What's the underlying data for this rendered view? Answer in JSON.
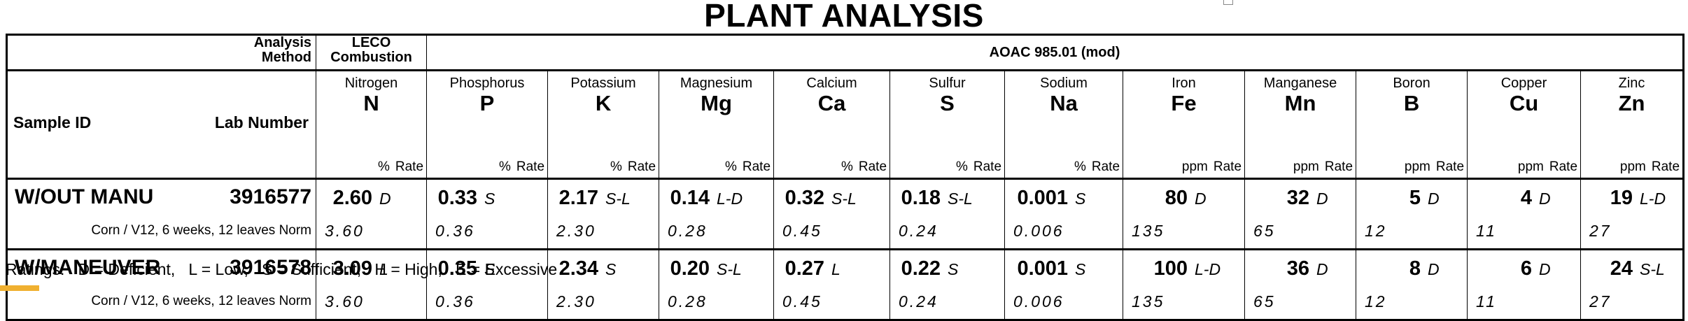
{
  "title": "PLANT ANALYSIS",
  "header": {
    "analysis_method_line1": "Analysis",
    "analysis_method_line2": "Method",
    "leco_line1": "LECO",
    "leco_line2": "Combustion",
    "aoac": "AOAC 985.01 (mod)",
    "sample_id": "Sample ID",
    "lab_number": "Lab Number"
  },
  "elements": [
    {
      "name": "Nitrogen",
      "symbol": "N",
      "unit": "%",
      "rate": "Rate"
    },
    {
      "name": "Phosphorus",
      "symbol": "P",
      "unit": "%",
      "rate": "Rate"
    },
    {
      "name": "Potassium",
      "symbol": "K",
      "unit": "%",
      "rate": "Rate"
    },
    {
      "name": "Magnesium",
      "symbol": "Mg",
      "unit": "%",
      "rate": "Rate"
    },
    {
      "name": "Calcium",
      "symbol": "Ca",
      "unit": "%",
      "rate": "Rate"
    },
    {
      "name": "Sulfur",
      "symbol": "S",
      "unit": "%",
      "rate": "Rate"
    },
    {
      "name": "Sodium",
      "symbol": "Na",
      "unit": "%",
      "rate": "Rate"
    },
    {
      "name": "Iron",
      "symbol": "Fe",
      "unit": "ppm",
      "rate": "Rate"
    },
    {
      "name": "Manganese",
      "symbol": "Mn",
      "unit": "ppm",
      "rate": "Rate"
    },
    {
      "name": "Boron",
      "symbol": "B",
      "unit": "ppm",
      "rate": "Rate"
    },
    {
      "name": "Copper",
      "symbol": "Cu",
      "unit": "ppm",
      "rate": "Rate"
    },
    {
      "name": "Zinc",
      "symbol": "Zn",
      "unit": "ppm",
      "rate": "Rate"
    }
  ],
  "samples": [
    {
      "sample_id": "W/OUT MANU",
      "lab_number": "3916577",
      "description": "Corn / V12, 6 weeks, 12 leaves Norm",
      "values": [
        {
          "value": "2.60",
          "rate": "D"
        },
        {
          "value": "0.33",
          "rate": "S"
        },
        {
          "value": "2.17",
          "rate": "S-L"
        },
        {
          "value": "0.14",
          "rate": "L-D"
        },
        {
          "value": "0.32",
          "rate": "S-L"
        },
        {
          "value": "0.18",
          "rate": "S-L"
        },
        {
          "value": "0.001",
          "rate": "S"
        },
        {
          "value": "80",
          "rate": "D"
        },
        {
          "value": "32",
          "rate": "D"
        },
        {
          "value": "5",
          "rate": "D"
        },
        {
          "value": "4",
          "rate": "D"
        },
        {
          "value": "19",
          "rate": "L-D"
        }
      ],
      "norms": [
        "3.60",
        "0.36",
        "2.30",
        "0.28",
        "0.45",
        "0.24",
        "0.006",
        "135",
        "65",
        "12",
        "11",
        "27"
      ]
    },
    {
      "sample_id": "W/MANEUVER",
      "lab_number": "3916578",
      "description": "Corn / V12, 6 weeks, 12 leaves Norm",
      "values": [
        {
          "value": "3.09",
          "rate": "L"
        },
        {
          "value": "0.35",
          "rate": "S"
        },
        {
          "value": "2.34",
          "rate": "S"
        },
        {
          "value": "0.20",
          "rate": "S-L"
        },
        {
          "value": "0.27",
          "rate": "L"
        },
        {
          "value": "0.22",
          "rate": "S"
        },
        {
          "value": "0.001",
          "rate": "S"
        },
        {
          "value": "100",
          "rate": "L-D"
        },
        {
          "value": "36",
          "rate": "D"
        },
        {
          "value": "8",
          "rate": "D"
        },
        {
          "value": "6",
          "rate": "D"
        },
        {
          "value": "24",
          "rate": "S-L"
        }
      ],
      "norms": [
        "3.60",
        "0.36",
        "2.30",
        "0.28",
        "0.45",
        "0.24",
        "0.006",
        "135",
        "65",
        "12",
        "11",
        "27"
      ]
    }
  ],
  "ratings_legend": "Ratings:   D = Deficient,   L = Low,   S = Sufficient,   H = High,   E = Excessive"
}
